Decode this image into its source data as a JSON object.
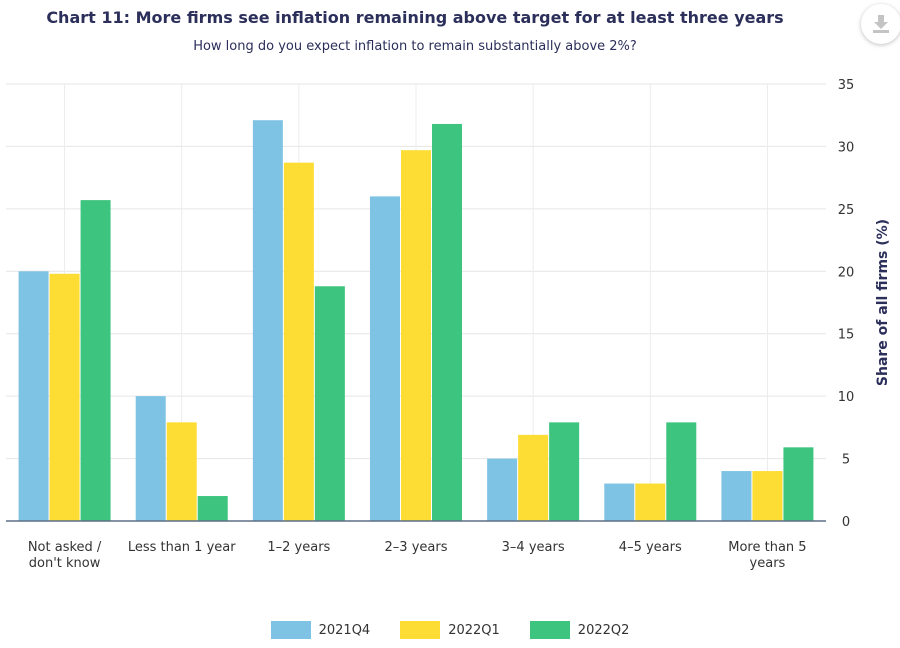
{
  "title": "Chart 11: More firms see inflation remaining above target for at least three years",
  "subtitle": "How long do you expect inflation to remain substantially above 2%?",
  "download_icon": "download-icon",
  "chart_data": {
    "type": "bar",
    "categories": [
      [
        "Not asked /",
        "don't know"
      ],
      [
        "Less than 1 year"
      ],
      [
        "1–2 years"
      ],
      [
        "2–3 years"
      ],
      [
        "3–4 years"
      ],
      [
        "4–5 years"
      ],
      [
        "More than 5",
        "years"
      ]
    ],
    "series": [
      {
        "name": "2021Q4",
        "color": "#7ec3e3",
        "values": [
          20,
          10,
          32.1,
          26,
          5,
          3,
          4
        ]
      },
      {
        "name": "2022Q1",
        "color": "#fddc34",
        "values": [
          19.8,
          7.9,
          28.7,
          29.7,
          6.9,
          3,
          4
        ]
      },
      {
        "name": "2022Q2",
        "color": "#3dc47e",
        "values": [
          25.7,
          2,
          18.8,
          31.8,
          7.9,
          7.9,
          5.9
        ]
      }
    ],
    "ylabel": "Share of all firms (%)",
    "ylim": [
      0,
      35
    ],
    "yticks": [
      0,
      5,
      10,
      15,
      20,
      25,
      30,
      35
    ],
    "y_axis_side": "right",
    "grid": true,
    "legend_position": "bottom-center"
  }
}
